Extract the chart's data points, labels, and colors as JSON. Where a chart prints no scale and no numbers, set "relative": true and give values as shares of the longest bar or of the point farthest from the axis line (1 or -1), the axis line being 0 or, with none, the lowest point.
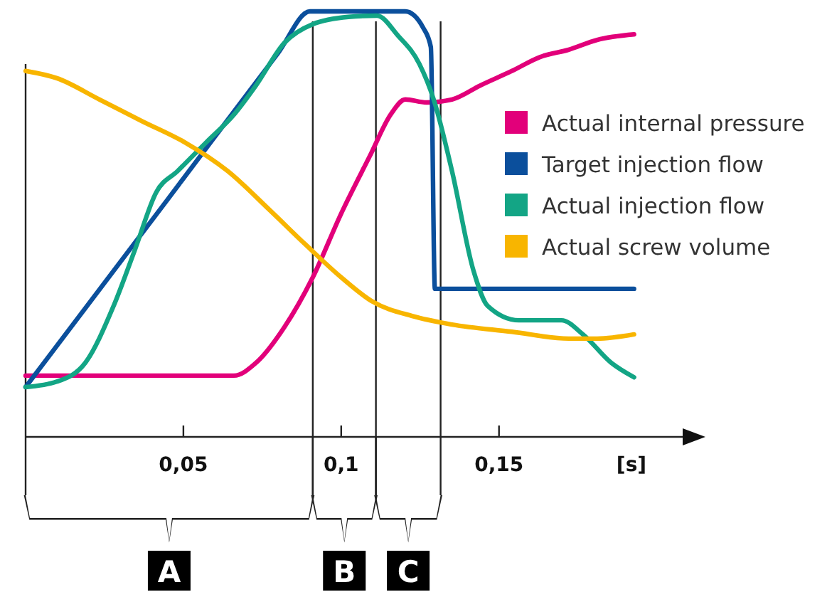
{
  "chart_data": {
    "type": "line",
    "relative": true,
    "xlabel": "[s]",
    "xlim": [
      0,
      0.21
    ],
    "xticks": [
      {
        "value": 0.05,
        "label": "0,05"
      },
      {
        "value": 0.1,
        "label": "0,1"
      },
      {
        "value": 0.15,
        "label": "0,15"
      }
    ],
    "legend": "right",
    "series": [
      {
        "name": "Actual internal pressure",
        "color": "#e2007a",
        "x": [
          0,
          0.066,
          0.073,
          0.082,
          0.091,
          0.1,
          0.109,
          0.1158,
          0.1203,
          0.127,
          0.1351,
          0.1441,
          0.1541,
          0.1631,
          0.1721,
          0.1811,
          0.1928
        ],
        "values": [
          0.144,
          0.144,
          0.174,
          0.258,
          0.375,
          0.525,
          0.659,
          0.759,
          0.793,
          0.786,
          0.793,
          0.826,
          0.86,
          0.893,
          0.91,
          0.933,
          0.946
        ]
      },
      {
        "name": "Target injection flow",
        "color": "#0b4f9c",
        "x": [
          0,
          0.045,
          0.08,
          0.0901,
          0.1,
          0.1203,
          0.1261,
          0.1284,
          0.1297,
          0.135,
          0.1928
        ],
        "values": [
          0.117,
          0.558,
          0.902,
          1,
          1,
          1,
          0.96,
          0.916,
          0.348,
          0.348,
          0.348
        ]
      },
      {
        "name": "Actual injection flow",
        "color": "#13a585",
        "x": [
          0,
          0.0099,
          0.0189,
          0.0279,
          0.0347,
          0.0414,
          0.0482,
          0.0572,
          0.0662,
          0.073,
          0.082,
          0.091,
          0.1023,
          0.1113,
          0.118,
          0.1248,
          0.1293,
          0.1351,
          0.1419,
          0.1464,
          0.1563,
          0.1698,
          0.1766,
          0.1856,
          0.1928
        ],
        "values": [
          0.117,
          0.13,
          0.174,
          0.308,
          0.441,
          0.575,
          0.625,
          0.692,
          0.759,
          0.826,
          0.926,
          0.97,
          0.987,
          0.99,
          0.943,
          0.876,
          0.793,
          0.625,
          0.391,
          0.308,
          0.274,
          0.274,
          0.241,
          0.174,
          0.14
        ]
      },
      {
        "name": "Actual screw volume",
        "color": "#f8b500",
        "x": [
          0,
          0.0099,
          0.0234,
          0.0369,
          0.0505,
          0.064,
          0.0775,
          0.0887,
          0.1,
          0.1099,
          0.1225,
          0.1351,
          0.1541,
          0.1721,
          0.1811,
          0.1928
        ],
        "values": [
          0.86,
          0.843,
          0.793,
          0.742,
          0.692,
          0.625,
          0.532,
          0.452,
          0.375,
          0.318,
          0.284,
          0.264,
          0.247,
          0.231,
          0.231,
          0.241
        ]
      }
    ],
    "ref_lines": [
      {
        "axis": "x",
        "value": 0.091
      },
      {
        "axis": "x",
        "value": 0.111
      },
      {
        "axis": "x",
        "value": 0.1315
      }
    ],
    "annotations": [
      "A",
      "B",
      "C"
    ]
  }
}
